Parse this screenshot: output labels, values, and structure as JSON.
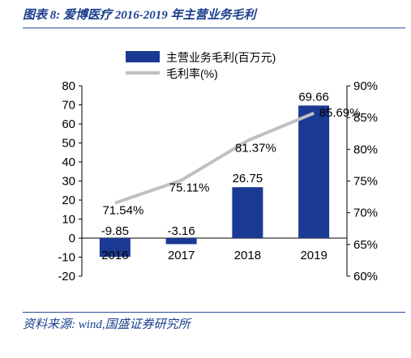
{
  "figure": {
    "title": "图表 8:  爱博医疗 2016-2019 年主营业务毛利",
    "source": "资料来源:  wind,国盛证券研究所"
  },
  "chart_data": {
    "type": "bar",
    "categories": [
      "2016",
      "2017",
      "2018",
      "2019"
    ],
    "series": [
      {
        "name": "主营业务毛利(百万元)",
        "type": "bar",
        "axis": "left",
        "values": [
          -9.85,
          -3.16,
          26.75,
          69.66
        ],
        "labels": [
          "-9.85",
          "-3.16",
          "26.75",
          "69.66"
        ],
        "color": "#1b3a94"
      },
      {
        "name": "毛利率(%)",
        "type": "line",
        "axis": "right",
        "values": [
          71.54,
          75.11,
          81.37,
          85.69
        ],
        "labels": [
          "71.54%",
          "75.11%",
          "81.37%",
          "85.69%"
        ],
        "color": "#c0c0c0"
      }
    ],
    "y_left": {
      "min": -20,
      "max": 80,
      "ticks": [
        "-20",
        "-10",
        "0",
        "10",
        "20",
        "30",
        "40",
        "50",
        "60",
        "70",
        "80"
      ]
    },
    "y_right": {
      "min": 60,
      "max": 90,
      "ticks": [
        "60%",
        "65%",
        "70%",
        "75%",
        "80%",
        "85%",
        "90%"
      ]
    },
    "grid": false,
    "legend": "top-center"
  }
}
